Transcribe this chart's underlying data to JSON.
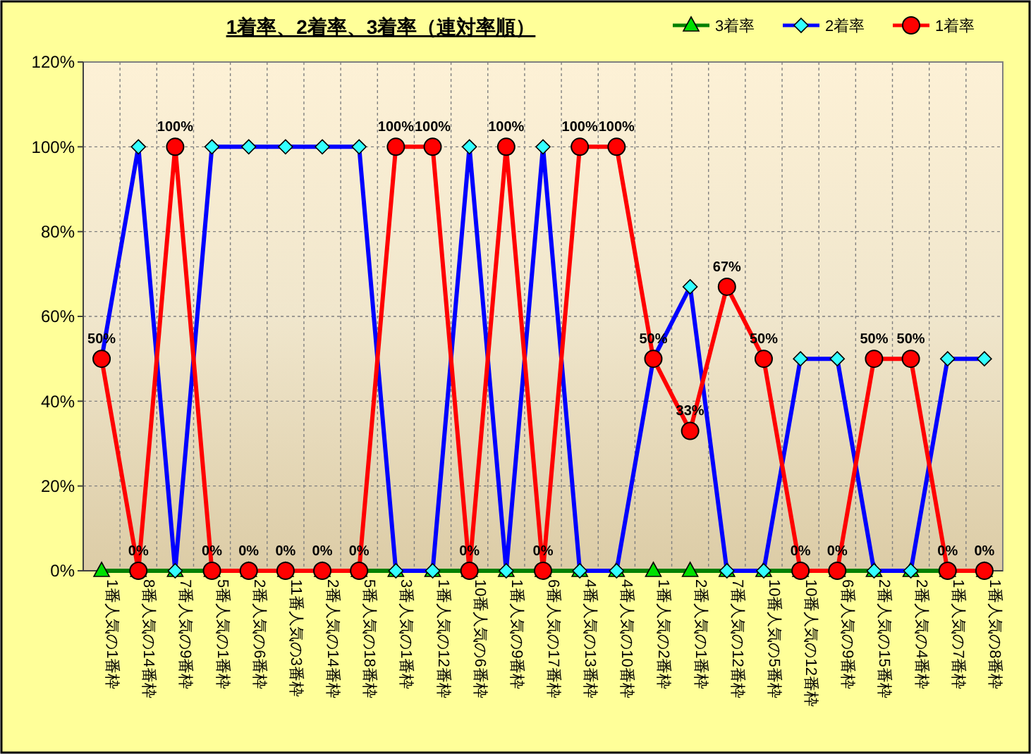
{
  "chart_data": {
    "type": "line",
    "title": "1着率、2着率、3着率（連対率順）",
    "categories": [
      "1番人気の1番枠",
      "8番人気の14番枠",
      "7番人気の9番枠",
      "5番人気の1番枠",
      "2番人気の6番枠",
      "11番人気の3番枠",
      "2番人気の14番枠",
      "5番人気の18番枠",
      "3番人気の1番枠",
      "1番人気の12番枠",
      "10番人気の6番枠",
      "1番人気の9番枠",
      "6番人気の17番枠",
      "4番人気の13番枠",
      "4番人気の10番枠",
      "1番人気の2番枠",
      "2番人気の1番枠",
      "7番人気の12番枠",
      "10番人気の5番枠",
      "10番人気の12番枠",
      "6番人気の9番枠",
      "2番人気の15番枠",
      "2番人気の4番枠",
      "1番人気の7番枠",
      "1番人気の8番枠"
    ],
    "series": [
      {
        "name": "3着率",
        "color": "#008000",
        "marker": "triangle",
        "values": [
          0,
          0,
          0,
          0,
          0,
          0,
          0,
          0,
          0,
          0,
          0,
          0,
          0,
          0,
          0,
          0,
          0,
          0,
          0,
          0,
          0,
          0,
          0,
          0,
          0
        ]
      },
      {
        "name": "2着率",
        "color": "#0000ff",
        "marker": "diamond",
        "values": [
          50,
          100,
          0,
          100,
          100,
          100,
          100,
          100,
          0,
          0,
          100,
          0,
          100,
          0,
          0,
          50,
          67,
          0,
          0,
          50,
          50,
          0,
          0,
          50,
          50
        ]
      },
      {
        "name": "1着率",
        "color": "#ff0000",
        "marker": "circle",
        "values": [
          50,
          0,
          100,
          0,
          0,
          0,
          0,
          0,
          100,
          100,
          0,
          100,
          0,
          100,
          100,
          50,
          33,
          67,
          50,
          0,
          0,
          50,
          50,
          0,
          0
        ],
        "value_labels": [
          "50%",
          "0%",
          "100%",
          "0%",
          "0%",
          "0%",
          "0%",
          "0%",
          "100%",
          "100%",
          "0%",
          "100%",
          "0%",
          "100%",
          "100%",
          "50%",
          "33%",
          "67%",
          "50%",
          "0%",
          "0%",
          "50%",
          "50%",
          "0%",
          "0%"
        ]
      }
    ],
    "ylim": [
      0,
      120
    ],
    "yticks": [
      {
        "value": 0,
        "label": "0%"
      },
      {
        "value": 20,
        "label": "20%"
      },
      {
        "value": 40,
        "label": "40%"
      },
      {
        "value": 60,
        "label": "60%"
      },
      {
        "value": 80,
        "label": "80%"
      },
      {
        "value": 100,
        "label": "100%"
      },
      {
        "value": 120,
        "label": "120%"
      }
    ],
    "grid": true,
    "legend": "top right",
    "line_style": "solid"
  }
}
